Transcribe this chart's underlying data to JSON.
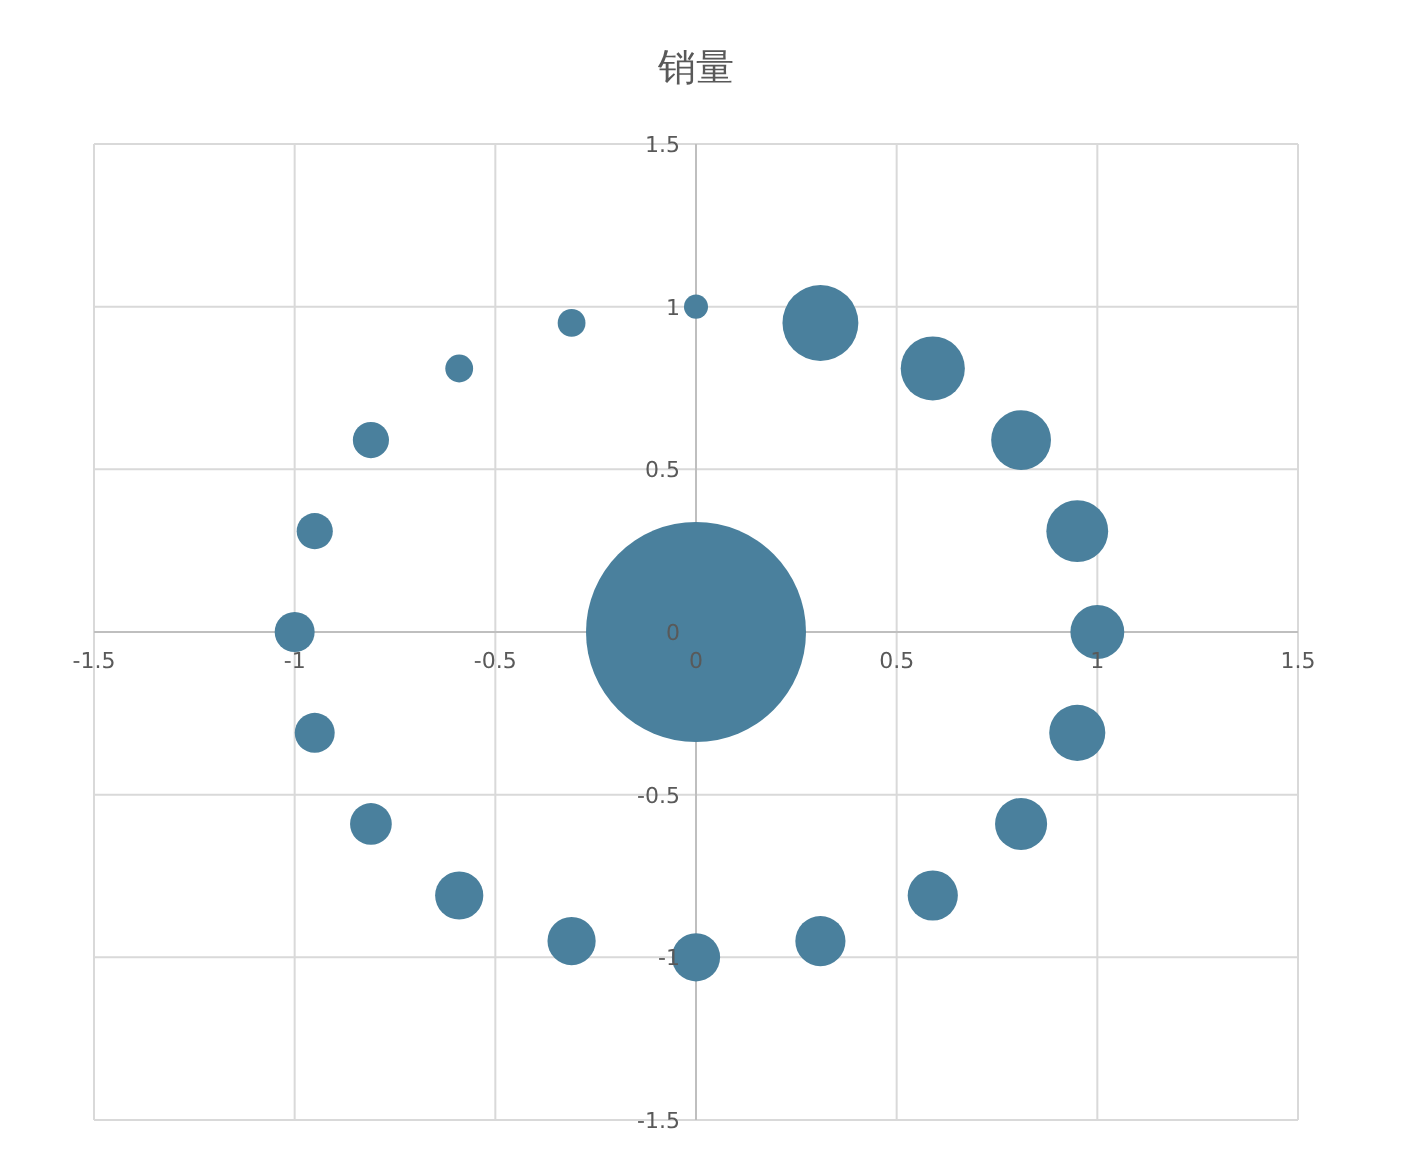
{
  "chart_data": {
    "type": "bubble",
    "title": "销量",
    "color": "#4a809d",
    "x": [
      0,
      0.31,
      0.59,
      0.81,
      0.95,
      1,
      0.95,
      0.81,
      0.59,
      0.31,
      0,
      -0.31,
      -0.59,
      -0.81,
      -0.95,
      -1,
      -0.95,
      -0.81,
      -0.59,
      -0.31,
      0
    ],
    "values": [
      1,
      0.95,
      0.81,
      0.59,
      0.31,
      0,
      -0.31,
      -0.59,
      -0.81,
      -0.95,
      -1,
      -0.95,
      -0.81,
      -0.59,
      -0.31,
      0,
      0.31,
      0.59,
      0.81,
      0.95,
      0
    ],
    "sizes": [
      0.012,
      0.119,
      0.085,
      0.074,
      0.079,
      0.06,
      0.065,
      0.056,
      0.052,
      0.052,
      0.048,
      0.048,
      0.048,
      0.036,
      0.033,
      0.033,
      0.027,
      0.027,
      0.016,
      0.016,
      1
    ],
    "xlim": [
      -1.5,
      1.5
    ],
    "ylim": [
      -1.5,
      1.5
    ],
    "xticks": [
      -1.5,
      -1,
      -0.5,
      0,
      0.5,
      1,
      1.5
    ],
    "yticks": [
      -1.5,
      -1,
      -0.5,
      0,
      0.5,
      1,
      1.5
    ],
    "grid": true,
    "marker": "circle"
  }
}
